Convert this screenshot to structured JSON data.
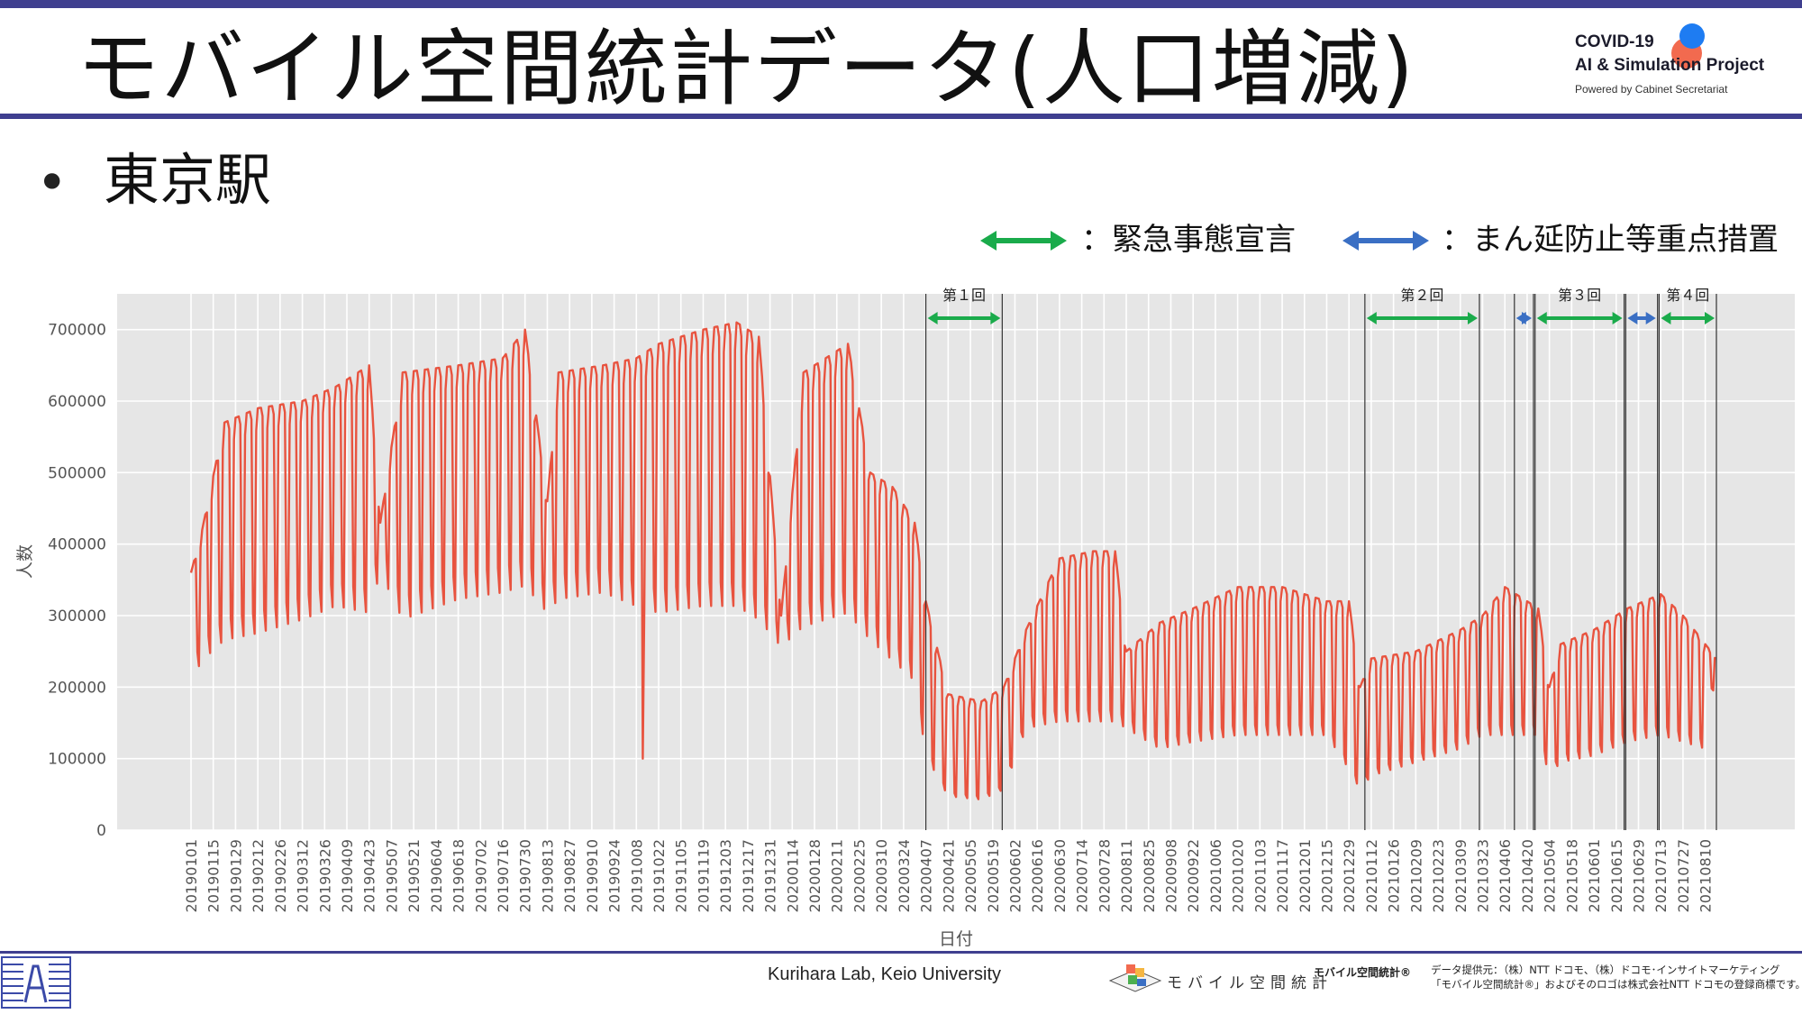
{
  "slide": {
    "title": "モバイル空間統計データ(人口増減)",
    "bullet": "•",
    "station": "東京駅",
    "logo": {
      "line1": "COVID-19",
      "line2": "AI & Simulation Project",
      "line3": "Powered by Cabinet Secretariat"
    },
    "legend": {
      "emergency": "：緊急事態宣言",
      "priority": "：まん延防止等重点措置",
      "emergency_color": "#1aab4b",
      "priority_color": "#3a6fc4"
    },
    "footer": {
      "credit": "Kurihara Lab, Keio University",
      "mobile_logo": "モバイル空間統計",
      "mobile_mark": "モバイル空間統計®",
      "provider_line1": "データ提供元：（株）NTT ドコモ、（株）ドコモ･インサイトマーケティング",
      "provider_line2": "「モバイル空間統計®」およびそのロゴは株式会社NTT ドコモの登録商標です。"
    }
  },
  "chart_data": {
    "type": "line",
    "title": "",
    "xlabel": "日付",
    "ylabel": "人数",
    "ylim": [
      0,
      750000
    ],
    "yticks": [
      0,
      100000,
      200000,
      300000,
      400000,
      500000,
      600000,
      700000
    ],
    "ytick_labels": [
      "0",
      "100000",
      "200000",
      "300000",
      "400000",
      "500000",
      "600000",
      "700000"
    ],
    "grid": true,
    "line_color": "#e8533f",
    "x_start": "2019-01-01",
    "x_end": "2021-08-17",
    "xtick_labels": [
      "20190101",
      "20190115",
      "20190129",
      "20190212",
      "20190226",
      "20190312",
      "20190326",
      "20190409",
      "20190423",
      "20190507",
      "20190521",
      "20190604",
      "20190618",
      "20190702",
      "20190716",
      "20190730",
      "20190813",
      "20190827",
      "20190910",
      "20190924",
      "20191008",
      "20191022",
      "20191105",
      "20191119",
      "20191203",
      "20191217",
      "20191231",
      "20200114",
      "20200128",
      "20200211",
      "20200225",
      "20200310",
      "20200324",
      "20200407",
      "20200421",
      "20200505",
      "20200519",
      "20200602",
      "20200616",
      "20200630",
      "20200714",
      "20200728",
      "20200811",
      "20200825",
      "20200908",
      "20200922",
      "20201006",
      "20201020",
      "20201103",
      "20201117",
      "20201201",
      "20201215",
      "20201229",
      "20210112",
      "20210126",
      "20210209",
      "20210223",
      "20210309",
      "20210323",
      "20210406",
      "20210420",
      "20210504",
      "20210518",
      "20210601",
      "20210615",
      "20210629",
      "20210713",
      "20210727",
      "20210810"
    ],
    "weekly_envelope": {
      "dates": [
        "2019-01-01",
        "2019-01-08",
        "2019-01-22",
        "2019-02-12",
        "2019-03-12",
        "2019-04-02",
        "2019-04-23",
        "2019-04-30",
        "2019-05-14",
        "2019-06-18",
        "2019-07-16",
        "2019-07-30",
        "2019-08-13",
        "2019-08-20",
        "2019-09-17",
        "2019-10-08",
        "2019-10-22",
        "2019-11-19",
        "2019-12-10",
        "2019-12-24",
        "2020-01-07",
        "2020-01-21",
        "2020-02-18",
        "2020-03-03",
        "2020-03-17",
        "2020-03-31",
        "2020-04-07",
        "2020-04-21",
        "2020-05-12",
        "2020-05-26",
        "2020-06-09",
        "2020-06-30",
        "2020-07-21",
        "2020-08-04",
        "2020-08-11",
        "2020-09-01",
        "2020-09-22",
        "2020-10-20",
        "2020-11-17",
        "2020-12-15",
        "2020-12-29",
        "2021-01-05",
        "2021-01-12",
        "2021-02-09",
        "2021-03-09",
        "2021-03-23",
        "2021-04-06",
        "2021-04-27",
        "2021-05-04",
        "2021-05-11",
        "2021-06-01",
        "2021-06-22",
        "2021-07-13",
        "2021-07-27",
        "2021-08-10",
        "2021-08-17"
      ],
      "weekday": [
        360000,
        420000,
        570000,
        590000,
        600000,
        620000,
        650000,
        430000,
        640000,
        650000,
        660000,
        700000,
        460000,
        640000,
        650000,
        660000,
        680000,
        700000,
        710000,
        690000,
        300000,
        640000,
        680000,
        500000,
        480000,
        430000,
        320000,
        190000,
        180000,
        200000,
        280000,
        380000,
        390000,
        390000,
        250000,
        290000,
        310000,
        340000,
        340000,
        320000,
        320000,
        200000,
        240000,
        250000,
        280000,
        300000,
        340000,
        310000,
        200000,
        260000,
        280000,
        310000,
        330000,
        300000,
        260000,
        240000
      ],
      "weekend": [
        220000,
        250000,
        280000,
        290000,
        310000,
        330000,
        320000,
        380000,
        310000,
        340000,
        350000,
        360000,
        320000,
        340000,
        350000,
        330000,
        320000,
        330000,
        330000,
        310000,
        270000,
        300000,
        320000,
        280000,
        250000,
        220000,
        110000,
        50000,
        45000,
        60000,
        150000,
        160000,
        160000,
        160000,
        150000,
        120000,
        130000,
        140000,
        140000,
        140000,
        90000,
        60000,
        80000,
        100000,
        120000,
        140000,
        140000,
        140000,
        80000,
        100000,
        110000,
        130000,
        140000,
        130000,
        120000,
        240000
      ]
    },
    "anomalies": [
      {
        "date": "2019-10-12",
        "value": 100000
      }
    ],
    "periods": [
      {
        "label": "第１回",
        "type": "emergency",
        "start": "2020-04-07",
        "end": "2020-05-25"
      },
      {
        "label": "第２回",
        "type": "emergency",
        "start": "2021-01-08",
        "end": "2021-03-21"
      },
      {
        "label": "",
        "type": "priority",
        "start": "2021-04-12",
        "end": "2021-04-24"
      },
      {
        "label": "第３回",
        "type": "emergency",
        "start": "2021-04-25",
        "end": "2021-06-20"
      },
      {
        "label": "",
        "type": "priority",
        "start": "2021-06-21",
        "end": "2021-07-11"
      },
      {
        "label": "第４回",
        "type": "emergency",
        "start": "2021-07-12",
        "end": "2021-08-17"
      }
    ]
  }
}
